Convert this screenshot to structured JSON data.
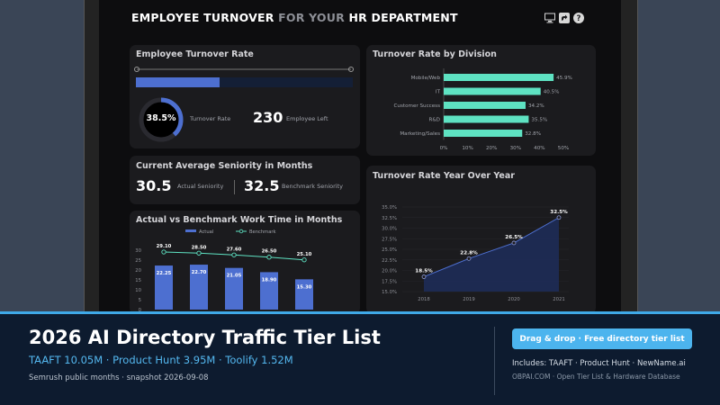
{
  "dashboard": {
    "title_part1": "EMPLOYEE TURNOVER",
    "title_part2": " FOR YOUR",
    "title_part3": " HR DEPARTMENT",
    "icons": [
      "monitor-icon",
      "share-icon",
      "help-icon"
    ]
  },
  "turnover_rate_card": {
    "title": "Employee Turnover Rate",
    "donut_value": "38.5%",
    "donut_fraction": 0.385,
    "rate_label": "Turnover Rate",
    "employees_left": "230",
    "employees_left_label": "Employee Left"
  },
  "seniority_card": {
    "title": "Current Average Seniority in Months",
    "actual_value": "30.5",
    "actual_label": "Actual Seniority",
    "benchmark_value": "32.5",
    "benchmark_label": "Benchmark Seniority"
  },
  "chart_data": [
    {
      "type": "bar",
      "title": "Turnover Rate by Division",
      "orientation": "horizontal",
      "categories": [
        "Mobile/Web",
        "IT",
        "Customer Success",
        "R&D",
        "Marketing/Sales"
      ],
      "values": [
        45.9,
        40.5,
        34.2,
        35.5,
        32.8
      ],
      "value_labels": [
        "45.9%",
        "40.5%",
        "34.2%",
        "35.5%",
        "32.8%"
      ],
      "xlim": [
        0,
        50
      ],
      "xticks": [
        "0%",
        "10%",
        "20%",
        "30%",
        "40%",
        "50%"
      ],
      "color": "#5ee2c2"
    },
    {
      "type": "area",
      "title": "Turnover Rate Year Over Year",
      "x": [
        "2018",
        "2019",
        "2020",
        "2021"
      ],
      "values": [
        18.5,
        22.8,
        26.5,
        32.5
      ],
      "value_labels": [
        "18.5%",
        "22.8%",
        "26.5%",
        "32.5%"
      ],
      "ylim": [
        15,
        35
      ],
      "yticks": [
        "15.0%",
        "17.5%",
        "20.0%",
        "22.5%",
        "25.0%",
        "27.5%",
        "30.0%",
        "32.5%",
        "35.0%"
      ],
      "color": "#4d6fd0"
    },
    {
      "type": "bar",
      "title": "Actual vs Benchmark Work Time in Months",
      "legend": [
        "Actual",
        "Benchmark"
      ],
      "categories": [
        "",
        "",
        "",
        "",
        ""
      ],
      "series": [
        {
          "name": "Actual",
          "values": [
            22.25,
            22.7,
            21.05,
            18.9,
            15.3
          ],
          "labels": [
            "22.25",
            "22.70",
            "21.05",
            "18.90",
            "15.30"
          ],
          "color": "#4d6fd0"
        },
        {
          "name": "Benchmark",
          "values": [
            29.1,
            28.5,
            27.6,
            26.5,
            25.1
          ],
          "labels": [
            "29.10",
            "28.50",
            "27.60",
            "26.50",
            "25.10"
          ],
          "color": "#5ee2c2"
        }
      ],
      "ylim": [
        0,
        30
      ],
      "yticks": [
        "0",
        "5",
        "10",
        "15",
        "20",
        "25",
        "30"
      ]
    }
  ],
  "banner": {
    "title": "2026 AI Directory Traffic Tier List",
    "metrics": "TAAFT 10.05M · Product Hunt 3.95M · Toolify 1.52M",
    "source": "Semrush public months · snapshot 2026-09-08",
    "cta": "Drag & drop · Free directory tier list",
    "includes": "Includes: TAAFT · Product Hunt · NewName.ai",
    "site": "OBPAI.COM · Open Tier List & Hardware Database"
  },
  "colors": {
    "accent_blue": "#4d6fd0",
    "accent_teal": "#5ee2c2",
    "banner_bg": "#0d1b2f",
    "banner_accent": "#3fa9e8"
  }
}
